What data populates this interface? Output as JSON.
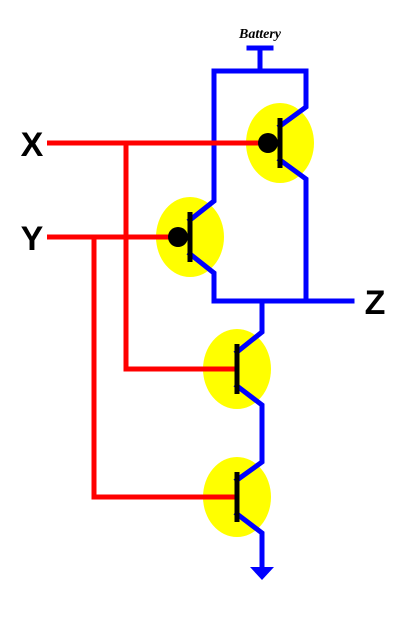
{
  "labels": {
    "battery": "Battery",
    "input_x": "X",
    "input_y": "Y",
    "output_z": "Z"
  },
  "colors": {
    "supply_wire": "#0000ff",
    "input_wire": "#ff0000",
    "transistor_body": "#ffff00",
    "transistor_symbol": "#000000"
  },
  "components": {
    "pmos_count": 2,
    "nmos_count": 2
  }
}
